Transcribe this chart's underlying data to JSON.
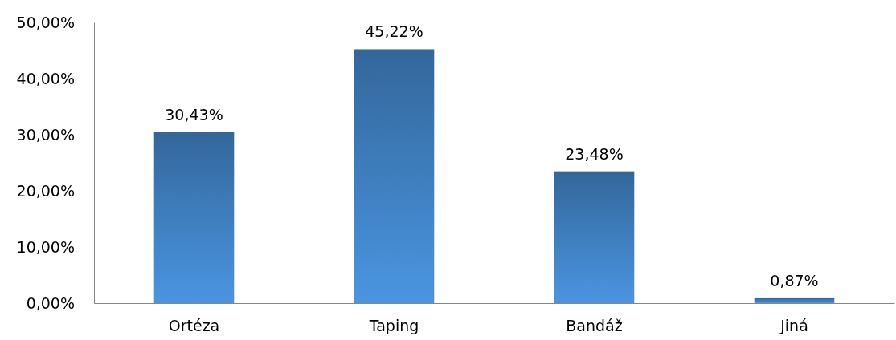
{
  "chart_data": {
    "type": "bar",
    "categories": [
      "Ortéza",
      "Taping",
      "Bandáž",
      "Jiná"
    ],
    "values": [
      30.43,
      45.22,
      23.48,
      0.87
    ],
    "value_labels": [
      "30,43%",
      "45,22%",
      "23,48%",
      "0,87%"
    ],
    "color": "#3f7fc0",
    "ylim": [
      0,
      50
    ],
    "yticks": [
      {
        "value": 0,
        "label": "0,00%"
      },
      {
        "value": 10,
        "label": "10,00%"
      },
      {
        "value": 20,
        "label": "20,00%"
      },
      {
        "value": 30,
        "label": "30,00%"
      },
      {
        "value": 40,
        "label": "40,00%"
      },
      {
        "value": 50,
        "label": "50,00%"
      }
    ],
    "grid": false
  }
}
